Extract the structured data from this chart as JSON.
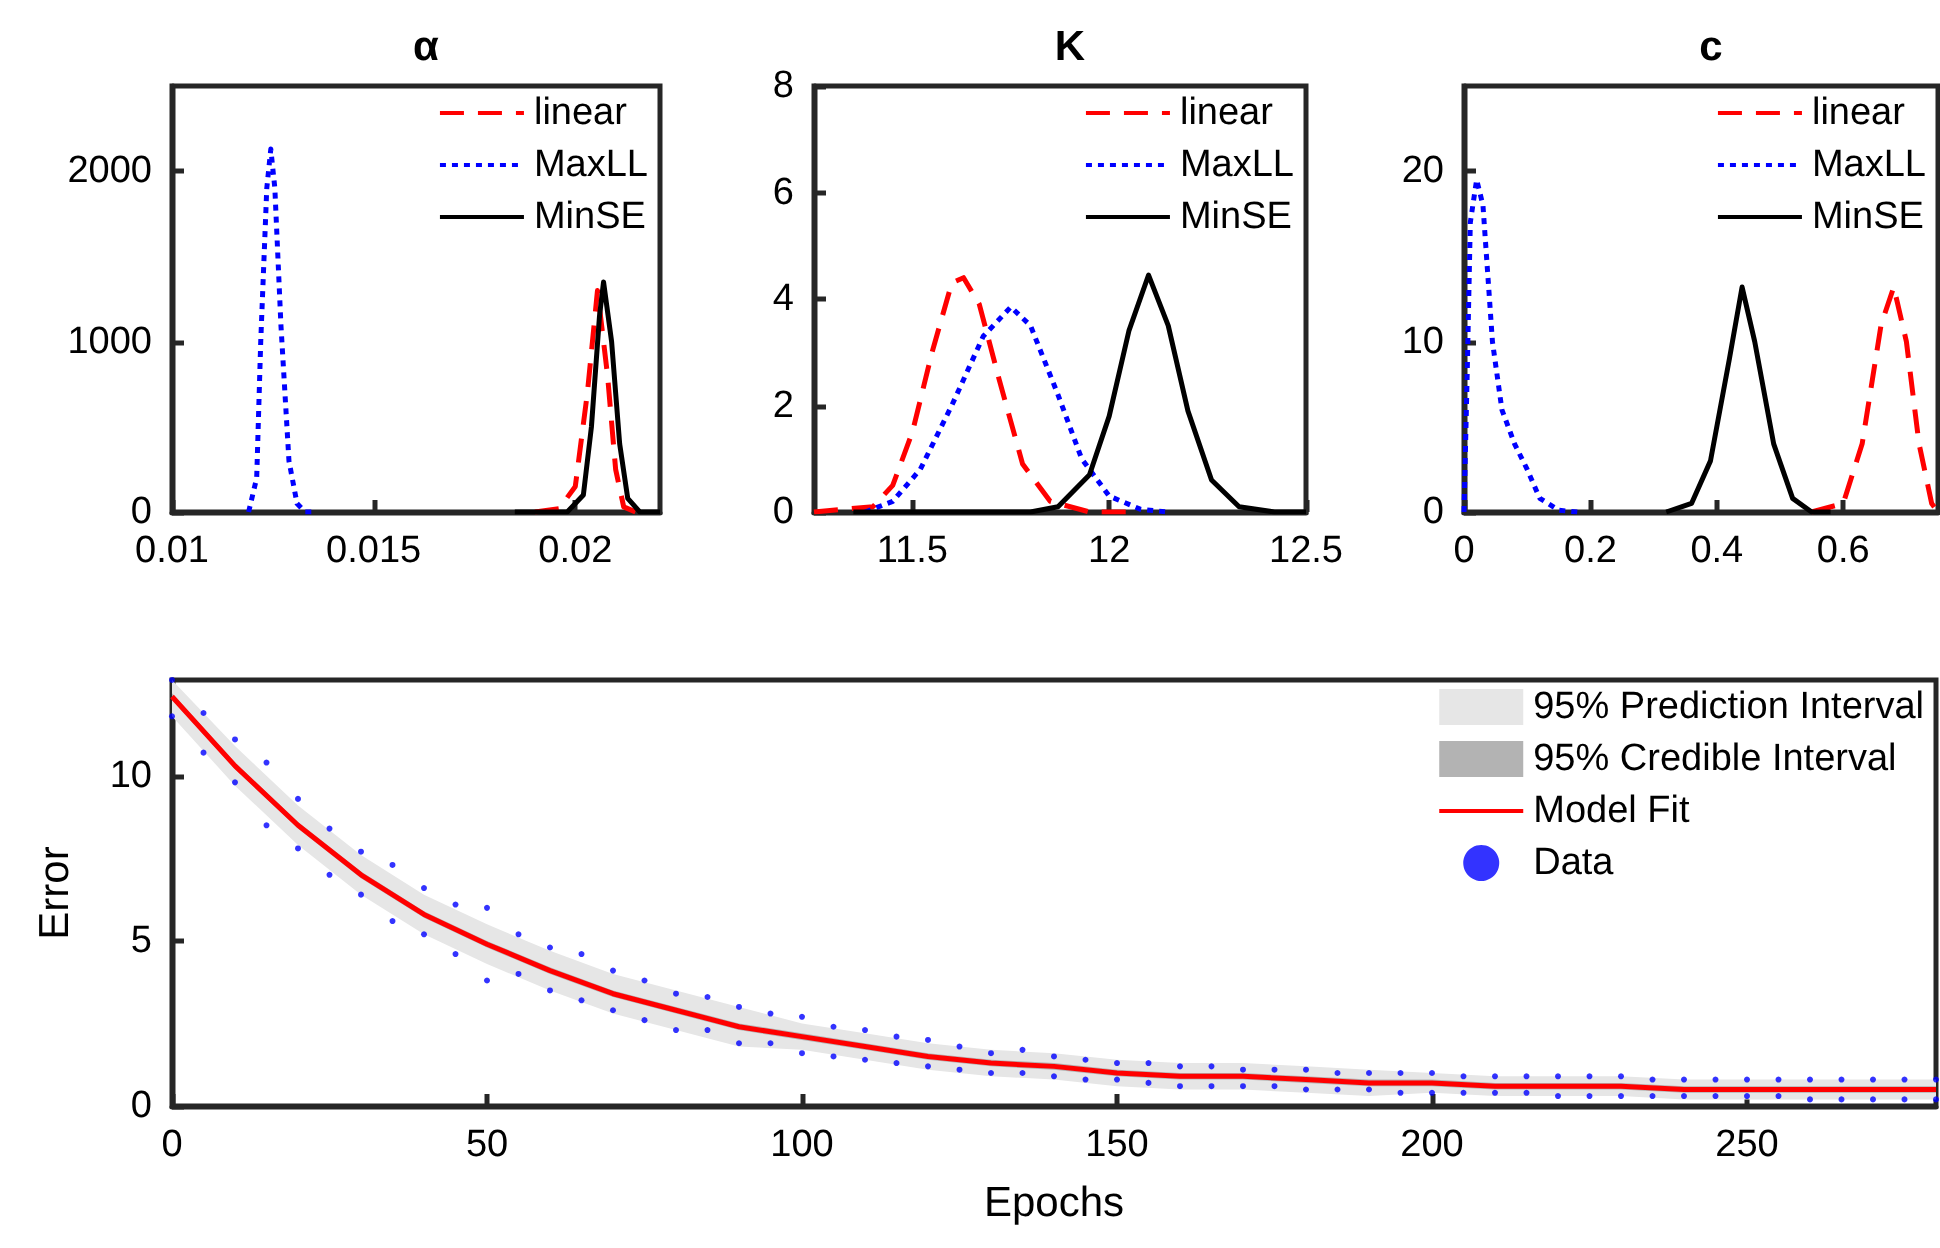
{
  "chart_data": [
    {
      "type": "line",
      "title": "α",
      "xlim": [
        0.01,
        0.0221
      ],
      "xticks": [
        0.01,
        0.015,
        0.02
      ],
      "ylim": [
        0,
        2500
      ],
      "yticks": [
        0,
        1000,
        2000
      ],
      "grid": false,
      "legend": "top right",
      "series": [
        {
          "name": "linear",
          "color": "#ff0000",
          "line_style": "dashed",
          "x": [
            0.019,
            0.0196,
            0.02,
            0.0203,
            0.02055,
            0.0208,
            0.021,
            0.0212,
            0.0215
          ],
          "values": [
            0,
            20,
            150,
            700,
            1300,
            800,
            250,
            30,
            0
          ]
        },
        {
          "name": "MaxLL",
          "color": "#0000ff",
          "line_style": "dotted",
          "x": [
            0.0119,
            0.0121,
            0.0122,
            0.01235,
            0.01245,
            0.01255,
            0.0127,
            0.0129,
            0.0131,
            0.0133,
            0.0136
          ],
          "values": [
            0,
            200,
            1000,
            1900,
            2130,
            1900,
            1100,
            300,
            50,
            0,
            0
          ]
        },
        {
          "name": "MinSE",
          "color": "#000000",
          "line_style": "solid",
          "x": [
            0.0185,
            0.0198,
            0.0202,
            0.0204,
            0.0206,
            0.0207,
            0.0209,
            0.0211,
            0.0213,
            0.0216,
            0.0221
          ],
          "values": [
            0,
            0,
            100,
            500,
            1150,
            1350,
            1000,
            400,
            80,
            0,
            0
          ]
        }
      ]
    },
    {
      "type": "line",
      "title": "K",
      "xlim": [
        11.25,
        12.5
      ],
      "xticks": [
        11.5,
        12,
        12.5
      ],
      "ylim": [
        0,
        8
      ],
      "yticks": [
        0,
        2,
        4,
        6,
        8
      ],
      "grid": false,
      "legend": "top right",
      "series": [
        {
          "name": "linear",
          "color": "#ff0000",
          "line_style": "dashed",
          "x": [
            11.25,
            11.4,
            11.45,
            11.5,
            11.55,
            11.6,
            11.63,
            11.67,
            11.72,
            11.78,
            11.85,
            11.95,
            12.05
          ],
          "values": [
            0,
            0.1,
            0.5,
            1.5,
            3.0,
            4.3,
            4.4,
            3.9,
            2.5,
            0.9,
            0.2,
            0,
            0
          ]
        },
        {
          "name": "MaxLL",
          "color": "#0000ff",
          "line_style": "dotted",
          "x": [
            11.38,
            11.45,
            11.52,
            11.6,
            11.68,
            11.75,
            11.8,
            11.87,
            11.93,
            12.0,
            12.08,
            12.15
          ],
          "values": [
            0,
            0.2,
            0.8,
            2.0,
            3.3,
            3.85,
            3.5,
            2.2,
            1.0,
            0.3,
            0.05,
            0
          ]
        },
        {
          "name": "MinSE",
          "color": "#000000",
          "line_style": "solid",
          "x": [
            11.35,
            11.8,
            11.87,
            11.95,
            12.0,
            12.05,
            12.1,
            12.15,
            12.2,
            12.26,
            12.33,
            12.42,
            12.5
          ],
          "values": [
            0,
            0,
            0.1,
            0.7,
            1.8,
            3.4,
            4.45,
            3.5,
            1.9,
            0.6,
            0.1,
            0,
            0
          ]
        }
      ]
    },
    {
      "type": "line",
      "title": "c",
      "xlim": [
        0,
        0.75
      ],
      "xticks": [
        0,
        0.2,
        0.4,
        0.6
      ],
      "ylim": [
        0,
        25
      ],
      "yticks": [
        0,
        10,
        20
      ],
      "grid": false,
      "legend": "top right",
      "series": [
        {
          "name": "linear",
          "color": "#ff0000",
          "line_style": "dashed",
          "x": [
            0.55,
            0.6,
            0.63,
            0.66,
            0.68,
            0.7,
            0.72,
            0.74,
            0.75
          ],
          "values": [
            0,
            0.5,
            4,
            11,
            13.2,
            10,
            4,
            0.5,
            0
          ]
        },
        {
          "name": "MaxLL",
          "color": "#0000ff",
          "line_style": "dotted",
          "x": [
            0,
            0.005,
            0.01,
            0.02,
            0.03,
            0.045,
            0.06,
            0.08,
            0.1,
            0.12,
            0.15,
            0.18
          ],
          "values": [
            0,
            8,
            17,
            19.5,
            18,
            10,
            6,
            4,
            2.5,
            0.8,
            0.1,
            0
          ]
        },
        {
          "name": "MinSE",
          "color": "#000000",
          "line_style": "solid",
          "x": [
            0.32,
            0.36,
            0.39,
            0.42,
            0.44,
            0.46,
            0.49,
            0.52,
            0.55,
            0.58
          ],
          "values": [
            0,
            0.5,
            3,
            9,
            13.2,
            10,
            4,
            0.8,
            0,
            0
          ]
        }
      ]
    },
    {
      "type": "line",
      "xlabel": "Epochs",
      "ylabel": "Error",
      "xlim": [
        0,
        280
      ],
      "xticks": [
        0,
        50,
        100,
        150,
        200,
        250
      ],
      "ylim": [
        0,
        12.9
      ],
      "yticks": [
        0,
        5,
        10
      ],
      "grid": false,
      "legend": "top right",
      "series": [
        {
          "name": "95% Prediction Interval",
          "type": "line",
          "color": "#e6e6e6",
          "x": [
            0,
            10,
            20,
            30,
            40,
            50,
            60,
            70,
            80,
            90,
            100,
            110,
            120,
            130,
            140,
            150,
            160,
            170,
            180,
            190,
            200,
            210,
            220,
            230,
            240,
            250,
            260,
            270,
            280
          ],
          "values": [
            null,
            null,
            null,
            null,
            null,
            null,
            null,
            null,
            null,
            null,
            null,
            null,
            null,
            null,
            null,
            null,
            null,
            null,
            null,
            null,
            null,
            null,
            null,
            null,
            null,
            null,
            null,
            null,
            null
          ],
          "lower": [
            11.8,
            9.7,
            7.9,
            6.4,
            5.2,
            4.3,
            3.5,
            2.8,
            2.3,
            1.8,
            1.7,
            1.4,
            1.1,
            0.9,
            0.8,
            0.6,
            0.5,
            0.5,
            0.4,
            0.3,
            0.4,
            0.3,
            0.3,
            0.3,
            0.2,
            0.2,
            0.2,
            0.2,
            0.2
          ],
          "upper": [
            12.9,
            10.9,
            9.1,
            7.6,
            6.4,
            5.5,
            4.7,
            4.0,
            3.5,
            3.0,
            2.5,
            2.2,
            1.9,
            1.7,
            1.6,
            1.4,
            1.3,
            1.3,
            1.2,
            1.1,
            1.0,
            0.9,
            0.9,
            0.9,
            0.8,
            0.8,
            0.8,
            0.8,
            0.8
          ]
        },
        {
          "name": "95% Credible Interval",
          "type": "line",
          "color": "#b3b3b3",
          "x": [
            0,
            10,
            20,
            30,
            40,
            50,
            60,
            70,
            80,
            90,
            100,
            110,
            120,
            130,
            140,
            150,
            160,
            170,
            180,
            190,
            200,
            210,
            220,
            230,
            240,
            250,
            260,
            270,
            280
          ],
          "values": [
            null,
            null,
            null,
            null,
            null,
            null,
            null,
            null,
            null,
            null,
            null,
            null,
            null,
            null,
            null,
            null,
            null,
            null,
            null,
            null,
            null,
            null,
            null,
            null,
            null,
            null,
            null,
            null,
            null
          ],
          "lower": [
            12.3,
            10.2,
            8.4,
            6.9,
            5.7,
            4.8,
            4.0,
            3.3,
            2.8,
            2.3,
            2.0,
            1.7,
            1.4,
            1.2,
            1.1,
            0.9,
            0.8,
            0.8,
            0.7,
            0.6,
            0.6,
            0.5,
            0.5,
            0.5,
            0.4,
            0.4,
            0.4,
            0.4,
            0.4
          ],
          "upper": [
            12.5,
            10.4,
            8.6,
            7.1,
            5.9,
            5.0,
            4.2,
            3.5,
            3.0,
            2.5,
            2.2,
            1.9,
            1.6,
            1.4,
            1.3,
            1.1,
            1.0,
            1.0,
            0.9,
            0.8,
            0.8,
            0.7,
            0.7,
            0.7,
            0.6,
            0.6,
            0.6,
            0.6,
            0.6
          ]
        },
        {
          "name": "Model Fit",
          "type": "line",
          "color": "#ff0000",
          "line_style": "solid",
          "x": [
            0,
            10,
            20,
            30,
            40,
            50,
            60,
            70,
            80,
            90,
            100,
            110,
            120,
            130,
            140,
            150,
            160,
            170,
            180,
            190,
            200,
            210,
            220,
            230,
            240,
            250,
            260,
            270,
            280
          ],
          "values": [
            12.4,
            10.3,
            8.5,
            7.0,
            5.8,
            4.9,
            4.1,
            3.4,
            2.9,
            2.4,
            2.1,
            1.8,
            1.5,
            1.3,
            1.2,
            1.0,
            0.9,
            0.9,
            0.8,
            0.7,
            0.7,
            0.6,
            0.6,
            0.6,
            0.5,
            0.5,
            0.5,
            0.5,
            0.5
          ]
        },
        {
          "name": "Data",
          "type": "scatter",
          "marker": "circle",
          "color": "#0000ff",
          "x": [
            0,
            5,
            10,
            15,
            20,
            25,
            30,
            35,
            40,
            45,
            50,
            55,
            60,
            65,
            70,
            75,
            80,
            85,
            90,
            95,
            100,
            105,
            110,
            115,
            120,
            125,
            130,
            135,
            140,
            145,
            150,
            155,
            160,
            165,
            170,
            175,
            180,
            185,
            190,
            195,
            200,
            205,
            210,
            215,
            220,
            225,
            230,
            235,
            240,
            245,
            250,
            255,
            260,
            265,
            270,
            275,
            280,
            0,
            5,
            10,
            15,
            20,
            25,
            30,
            35,
            40,
            45,
            50,
            55,
            60,
            65,
            70,
            75,
            80,
            85,
            90,
            95,
            100,
            105,
            110,
            115,
            120,
            125,
            130,
            135,
            140,
            145,
            150,
            155,
            160,
            165,
            170,
            175,
            180,
            185,
            190,
            195,
            200,
            205,
            210,
            215,
            220,
            225,
            230,
            235,
            240,
            245,
            250,
            255,
            260,
            265,
            270,
            275,
            280
          ],
          "values": [
            12.9,
            11.9,
            11.1,
            10.4,
            9.3,
            8.4,
            7.7,
            7.3,
            6.6,
            6.1,
            6.0,
            5.2,
            4.8,
            4.6,
            4.1,
            3.8,
            3.4,
            3.3,
            3.0,
            2.8,
            2.7,
            2.4,
            2.3,
            2.1,
            2.0,
            1.8,
            1.6,
            1.7,
            1.5,
            1.4,
            1.3,
            1.3,
            1.2,
            1.2,
            1.1,
            1.1,
            1.1,
            1.0,
            1.0,
            1.0,
            1.0,
            0.9,
            0.9,
            0.9,
            0.9,
            0.9,
            0.9,
            0.8,
            0.8,
            0.8,
            0.8,
            0.8,
            0.8,
            0.8,
            0.8,
            0.8,
            0.8,
            11.8,
            10.7,
            9.8,
            8.5,
            7.8,
            7.0,
            6.4,
            5.6,
            5.2,
            4.6,
            3.8,
            4.0,
            3.5,
            3.2,
            2.9,
            2.6,
            2.3,
            2.3,
            1.9,
            1.9,
            1.6,
            1.5,
            1.4,
            1.3,
            1.2,
            1.1,
            1.0,
            1.0,
            0.9,
            0.8,
            0.8,
            0.7,
            0.6,
            0.6,
            0.6,
            0.6,
            0.5,
            0.5,
            0.5,
            0.4,
            0.4,
            0.4,
            0.4,
            0.4,
            0.3,
            0.3,
            0.3,
            0.3,
            0.3,
            0.3,
            0.3,
            0.3,
            0.2,
            0.2,
            0.2,
            0.2,
            0.2
          ]
        }
      ]
    }
  ]
}
